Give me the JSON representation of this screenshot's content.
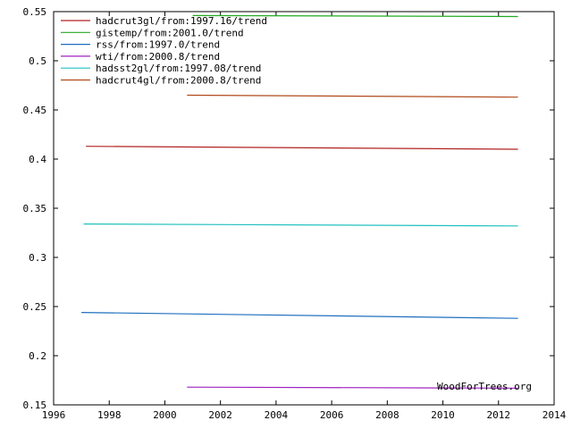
{
  "chart_data": {
    "type": "line",
    "title": "",
    "xlabel": "",
    "ylabel": "",
    "xlim": [
      1996,
      2014
    ],
    "ylim": [
      0.15,
      0.55
    ],
    "x_ticks": [
      "1996",
      "1998",
      "2000",
      "2002",
      "2004",
      "2006",
      "2008",
      "2010",
      "2012",
      "2014"
    ],
    "y_ticks": [
      "0.15",
      "0.2",
      "0.25",
      "0.3",
      "0.35",
      "0.4",
      "0.45",
      "0.5",
      "0.55"
    ],
    "grid": false,
    "legend_position": "top-left",
    "credit": "WoodForTrees.org",
    "series": [
      {
        "name": "hadcrut3gl/from:1997.16/trend",
        "color": "#b22222",
        "x": [
          1997.16,
          2012.7
        ],
        "y": [
          0.413,
          0.41
        ]
      },
      {
        "name": "gistemp/from:2001.0/trend",
        "color": "#22aa22",
        "x": [
          2001.0,
          2012.7
        ],
        "y": [
          0.546,
          0.545
        ]
      },
      {
        "name": "rss/from:1997.0/trend",
        "color": "#1f6fbf",
        "x": [
          1997.0,
          2012.7
        ],
        "y": [
          0.244,
          0.238
        ]
      },
      {
        "name": "wti/from:2000.8/trend",
        "color": "#a020c0",
        "x": [
          2000.8,
          2012.7
        ],
        "y": [
          0.168,
          0.167
        ]
      },
      {
        "name": "hadsst2gl/from:1997.08/trend",
        "color": "#20c0c0",
        "x": [
          1997.08,
          2012.7
        ],
        "y": [
          0.334,
          0.332
        ]
      },
      {
        "name": "hadcrut4gl/from:2000.8/trend",
        "color": "#b04a1a",
        "x": [
          2000.8,
          2012.7
        ],
        "y": [
          0.465,
          0.463
        ]
      }
    ]
  }
}
